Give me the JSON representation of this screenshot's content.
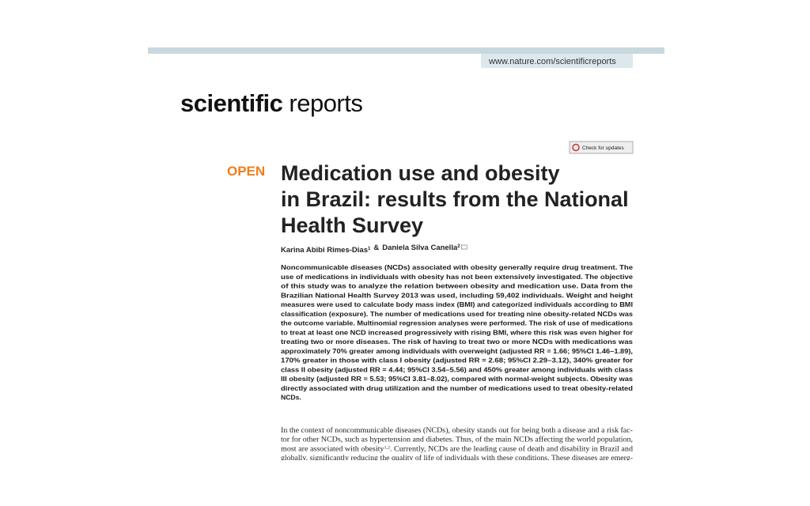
{
  "header": {
    "url": "www.nature.com/scientificreports"
  },
  "journal": {
    "name_bold": "scientific",
    "name_regular": "reports"
  },
  "badge": "Check for updates",
  "article": {
    "access": "OPEN",
    "title_lines": [
      "Medication use and obesity",
      "in Brazil: results from the National",
      "Health Survey"
    ],
    "authors": [
      {
        "name": "Karina Abibi Rimes-Dias",
        "affiliation": "1"
      },
      {
        "name": "Daniela Silva Canella",
        "affiliation": "2"
      }
    ],
    "author_separator": "&",
    "abstract_lines": [
      "Noncommunicable diseases (NCDs) associated with obesity generally require drug treatment. The",
      "use of medications in individuals with obesity has not been extensively investigated. The objective",
      "of this study was to analyze the relation between obesity and medication use. Data from the",
      "Brazilian National Health Survey 2013 was used, including 59,402 individuals. Weight and height",
      "measures were used to calculate body mass index (BMI) and categorized individuals according to BMI",
      "classification (exposure). The number of medications used for treating nine obesity-related NCDs was",
      "the outcome variable. Multinomial regression analyses were performed. The risk of use of medications",
      "to treat at least one NCD increased progressively with rising BMI, where this risk was even higher for",
      "treating two or more diseases. The risk of having to treat two or more NCDs with medications was",
      "approximately 70% greater among individuals with overweight (adjusted RR = 1.66; 95%CI 1.46–1.89),",
      "170% greater in those with class I obesity (adjusted RR = 2.68; 95%CI 2.29–3.12), 340% greater for",
      "class II obesity (adjusted RR = 4.44; 95%CI 3.54–5.56) and 450% greater among individuals with class",
      "III obesity (adjusted RR = 5.53; 95%CI 3.81–8.02), compared with normal-weight subjects. Obesity was",
      "directly associated with drug utilization and the number of medications used to treat obesity-related",
      "NCDs."
    ],
    "intro_lines": [
      "In the context of noncommunicable diseases (NCDs), obesity stands out for being both a disease and a risk fac-",
      "tor for other NCDs, such as hypertension and diabetes. Thus, of the main NCDs affecting the world population,",
      [
        {
          "text": "most are associated with obesity"
        },
        {
          "sup": "1,2"
        },
        {
          "text": ". Currently, NCDs are the leading cause of death and disability in Brazil and"
        }
      ],
      "globally, significantly reducing the quality of life of individuals with these conditions. These diseases are emerg-"
    ]
  }
}
